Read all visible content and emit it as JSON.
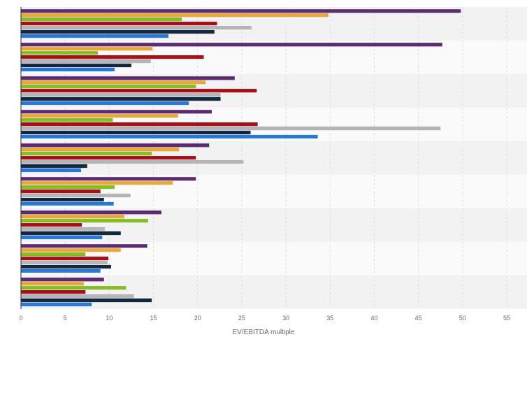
{
  "chart_data": {
    "type": "bar",
    "orientation": "horizontal",
    "xlabel": "EV/EBITDA multiple",
    "xlim": [
      0,
      55
    ],
    "xticks": [
      "0",
      "5",
      "10",
      "15",
      "20",
      "25",
      "30",
      "35",
      "40",
      "45",
      "50",
      "55"
    ],
    "categories": [
      "",
      "",
      "",
      "",
      "",
      "",
      "",
      "",
      ""
    ],
    "grid": true,
    "series": [
      {
        "color": "#5b2c6f",
        "values": [
          49.8,
          47.7,
          24.2,
          21.6,
          21.3,
          19.8,
          15.9,
          14.3,
          9.4
        ]
      },
      {
        "color": "#e8a838",
        "values": [
          34.8,
          14.9,
          20.9,
          17.8,
          17.9,
          17.2,
          11.7,
          11.3,
          7.1
        ]
      },
      {
        "color": "#86bc25",
        "values": [
          18.2,
          8.7,
          19.8,
          10.4,
          14.8,
          10.6,
          14.4,
          7.3,
          11.9
        ]
      },
      {
        "color": "#a3121c",
        "values": [
          22.2,
          20.7,
          26.7,
          26.8,
          19.8,
          9.0,
          6.9,
          9.9,
          7.3
        ]
      },
      {
        "color": "#b5b5b5",
        "values": [
          26.1,
          14.7,
          22.6,
          47.5,
          25.2,
          12.4,
          9.5,
          9.8,
          12.8
        ]
      },
      {
        "color": "#14293d",
        "values": [
          21.9,
          12.5,
          22.6,
          26.0,
          7.5,
          9.4,
          11.3,
          10.2,
          14.8
        ]
      },
      {
        "color": "#2a78d6",
        "values": [
          16.7,
          10.6,
          19.0,
          33.6,
          6.8,
          10.5,
          9.2,
          9.0,
          8.0
        ]
      }
    ]
  }
}
